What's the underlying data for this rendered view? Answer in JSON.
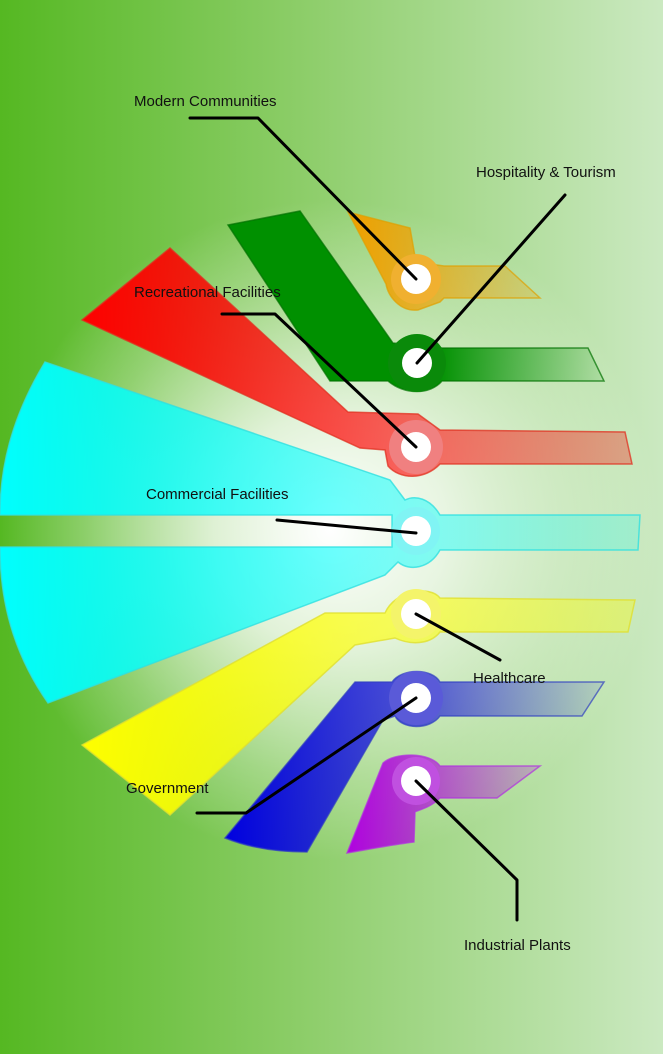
{
  "diagram": {
    "labels": {
      "modern_communities": "Modern Communities",
      "hospitality_tourism": "Hospitality & Tourism",
      "recreational_facilities": "Recreational Facilities",
      "commercial_facilities": "Commercial Facilities",
      "healthcare": "Healthcare",
      "government": "Government",
      "industrial_plants": "Industrial Plants"
    },
    "colors": {
      "background_left": "#5cbb2a",
      "background_right": "#c9e8bd",
      "orange": "#f0a000",
      "green": "#009000",
      "red": "#ff0000",
      "cyan": "#00ffff",
      "yellow": "#ffff00",
      "blue": "#0000e0",
      "purple": "#b000e0"
    }
  }
}
